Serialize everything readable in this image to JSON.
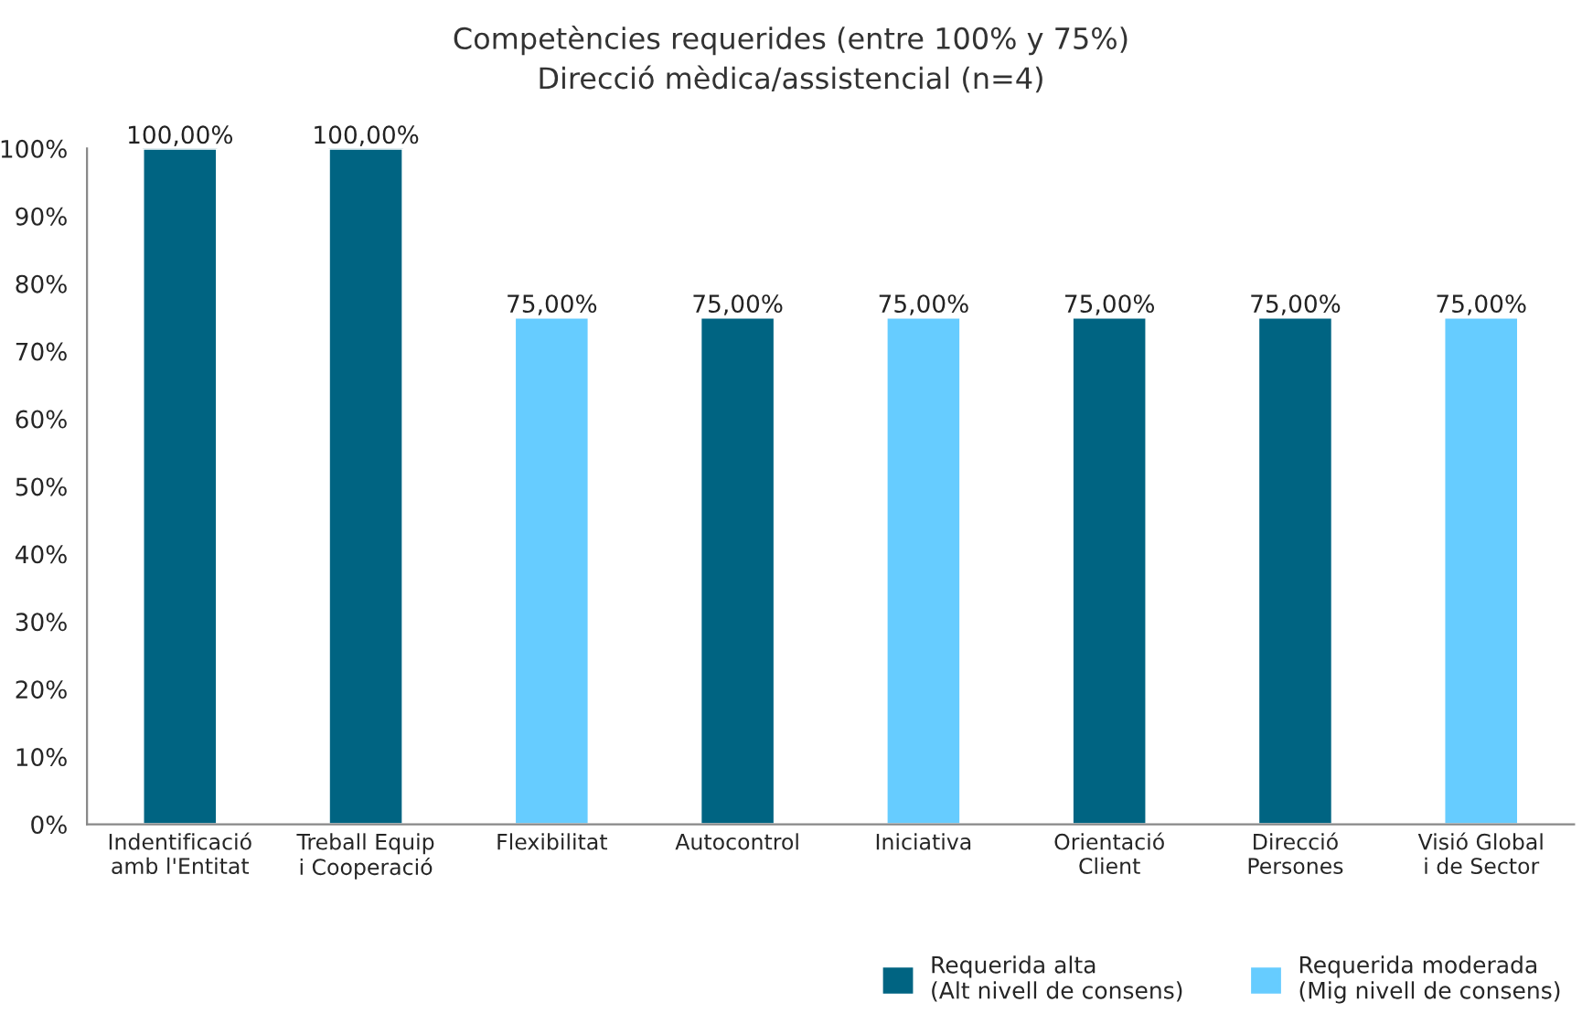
{
  "chart_data": {
    "type": "bar",
    "title": "Competències requerides (entre 100% y 75%)",
    "subtitle": "Direcció mèdica/assistencial (n=4)",
    "categories": [
      "Indentificació\namb l'Entitat",
      "Treball Equip\ni Cooperació",
      "Flexibilitat",
      "Autocontrol",
      "Iniciativa",
      "Orientació\nClient",
      "Direcció\nPersones",
      "Visió Global\ni de Sector"
    ],
    "series": [
      {
        "name": "Requerida alta\n(Alt nivell de consens)",
        "color": "#006482",
        "values": [
          100,
          100,
          null,
          75,
          null,
          75,
          75,
          null
        ],
        "value_labels": [
          "100,00%",
          "100,00%",
          null,
          "75,00%",
          null,
          "75,00%",
          "75,00%",
          null
        ]
      },
      {
        "name": "Requerida moderada\n(Mig nivell de consens)",
        "color": "#66ccff",
        "values": [
          null,
          null,
          75,
          null,
          75,
          null,
          null,
          75
        ],
        "value_labels": [
          null,
          null,
          "75,00%",
          null,
          "75,00%",
          null,
          null,
          "75,00%"
        ]
      }
    ],
    "ylim": [
      0,
      100
    ],
    "yticks": [
      {
        "value": 0,
        "label": "0%"
      },
      {
        "value": 10,
        "label": "10%"
      },
      {
        "value": 20,
        "label": "20%"
      },
      {
        "value": 30,
        "label": "30%"
      },
      {
        "value": 40,
        "label": "40%"
      },
      {
        "value": 50,
        "label": "50%"
      },
      {
        "value": 60,
        "label": "60%"
      },
      {
        "value": 70,
        "label": "70%"
      },
      {
        "value": 80,
        "label": "80%"
      },
      {
        "value": 90,
        "label": "90%"
      },
      {
        "value": 100,
        "label": "100%"
      }
    ],
    "grid": false,
    "legend": "bottom right"
  }
}
